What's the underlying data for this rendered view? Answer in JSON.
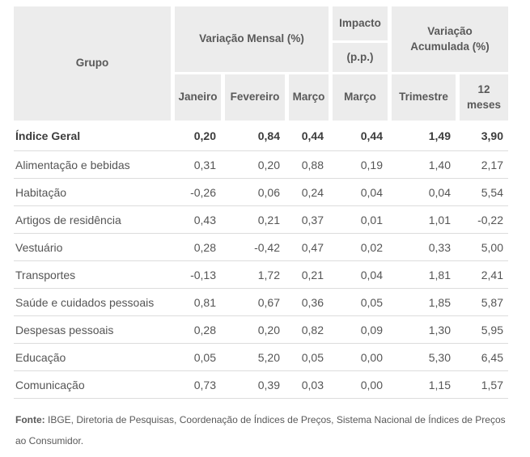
{
  "chart_data": {
    "type": "table",
    "header": {
      "grupo": "Grupo",
      "variacao_mensal": "Variação Mensal (%)",
      "impacto": "Impacto",
      "impacto_unit": "(p.p.)",
      "variacao_acumulada": "Variação Acumulada (%)",
      "columns": [
        "Janeiro",
        "Fevereiro",
        "Março",
        "Março",
        "Trimestre",
        "12 meses"
      ]
    },
    "rows": [
      {
        "label": "Índice Geral",
        "values": [
          "0,20",
          "0,84",
          "0,44",
          "0,44",
          "1,49",
          "3,90"
        ]
      },
      {
        "label": "Alimentação e bebidas",
        "values": [
          "0,31",
          "0,20",
          "0,88",
          "0,19",
          "1,40",
          "2,17"
        ]
      },
      {
        "label": "Habitação",
        "values": [
          "-0,26",
          "0,06",
          "0,24",
          "0,04",
          "0,04",
          "5,54"
        ]
      },
      {
        "label": "Artigos de residência",
        "values": [
          "0,43",
          "0,21",
          "0,37",
          "0,01",
          "1,01",
          "-0,22"
        ]
      },
      {
        "label": "Vestuário",
        "values": [
          "0,28",
          "-0,42",
          "0,47",
          "0,02",
          "0,33",
          "5,00"
        ]
      },
      {
        "label": "Transportes",
        "values": [
          "-0,13",
          "1,72",
          "0,21",
          "0,04",
          "1,81",
          "2,41"
        ]
      },
      {
        "label": "Saúde e cuidados pessoais",
        "values": [
          "0,81",
          "0,67",
          "0,36",
          "0,05",
          "1,85",
          "5,87"
        ]
      },
      {
        "label": "Despesas pessoais",
        "values": [
          "0,28",
          "0,20",
          "0,82",
          "0,09",
          "1,30",
          "5,95"
        ]
      },
      {
        "label": "Educação",
        "values": [
          "0,05",
          "5,20",
          "0,05",
          "0,00",
          "5,30",
          "6,45"
        ]
      },
      {
        "label": "Comunicação",
        "values": [
          "0,73",
          "0,39",
          "0,03",
          "0,00",
          "1,15",
          "1,57"
        ]
      }
    ],
    "footer": {
      "label": "Fonte:",
      "text": " IBGE, Diretoria de Pesquisas, Coordenação de Índices de Preços, Sistema Nacional de Índices de Preços ao Consumidor."
    }
  },
  "colors": {
    "header_bg": "#ececec",
    "header_text": "#595959",
    "body_text": "#555555",
    "total_text": "#3c3c3c",
    "divider": "#dcdcdc",
    "page_bg": "#ffffff"
  }
}
